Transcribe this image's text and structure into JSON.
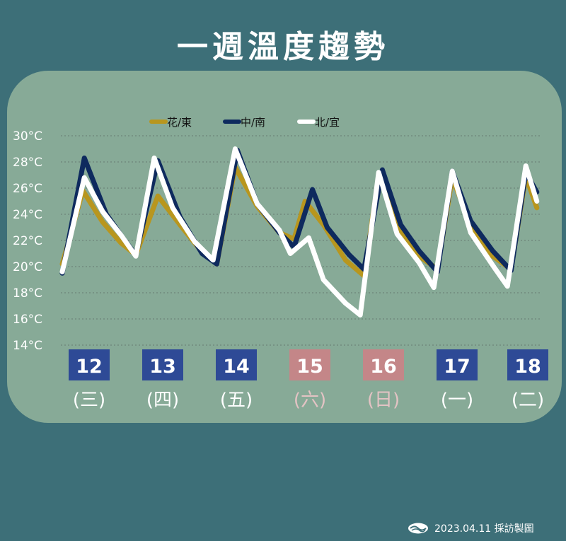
{
  "title": "一週溫度趨勢",
  "footer": {
    "text": "2023.04.11 採訪製圖"
  },
  "colors": {
    "background": "#3d6f78",
    "panel": "#87aa97",
    "weekday": "#2e4a96",
    "weekend": "#c48688"
  },
  "chart_data": {
    "type": "line",
    "title": "一週溫度趨勢",
    "ylabel": "",
    "ylim": [
      14,
      30
    ],
    "yticks": [
      "14°C",
      "16°C",
      "18°C",
      "20°C",
      "22°C",
      "24°C",
      "26°C",
      "28°C",
      "30°C"
    ],
    "grid": true,
    "legend_position": "top",
    "days": [
      {
        "date": "12",
        "weekday": "(三)",
        "weekend": false
      },
      {
        "date": "13",
        "weekday": "(四)",
        "weekend": false
      },
      {
        "date": "14",
        "weekday": "(五)",
        "weekend": false
      },
      {
        "date": "15",
        "weekday": "(六)",
        "weekend": true
      },
      {
        "date": "16",
        "weekday": "(日)",
        "weekend": true
      },
      {
        "date": "17",
        "weekday": "(一)",
        "weekend": false
      },
      {
        "date": "18",
        "weekday": "(二)",
        "weekend": false
      }
    ],
    "series": [
      {
        "name": "花/東",
        "color": "#b8961e",
        "values": [
          [
            0,
            20.2
          ],
          [
            0.28,
            25.8
          ],
          [
            0.55,
            23.4
          ],
          [
            0.8,
            21.8
          ],
          [
            1.0,
            20.9
          ],
          [
            1.3,
            25.4
          ],
          [
            1.6,
            23.2
          ],
          [
            1.9,
            21.1
          ],
          [
            2.1,
            20.2
          ],
          [
            2.35,
            27.6
          ],
          [
            2.65,
            24.6
          ],
          [
            2.95,
            22.6
          ],
          [
            3.15,
            22.1
          ],
          [
            3.3,
            25.0
          ],
          [
            3.55,
            23.2
          ],
          [
            3.85,
            20.5
          ],
          [
            4.1,
            19.3
          ],
          [
            4.3,
            26.9
          ],
          [
            4.6,
            22.6
          ],
          [
            4.85,
            20.8
          ],
          [
            5.1,
            19.8
          ],
          [
            5.3,
            26.8
          ],
          [
            5.55,
            23.2
          ],
          [
            5.85,
            20.8
          ],
          [
            6.1,
            19.8
          ],
          [
            6.3,
            26.9
          ],
          [
            6.45,
            24.5
          ]
        ]
      },
      {
        "name": "中/南",
        "color": "#0e2a5e",
        "values": [
          [
            0,
            19.5
          ],
          [
            0.3,
            28.3
          ],
          [
            0.6,
            24.0
          ],
          [
            0.85,
            22.0
          ],
          [
            1.0,
            20.9
          ],
          [
            1.3,
            28.1
          ],
          [
            1.6,
            23.8
          ],
          [
            1.9,
            21.0
          ],
          [
            2.1,
            20.2
          ],
          [
            2.38,
            28.9
          ],
          [
            2.65,
            24.8
          ],
          [
            2.95,
            22.6
          ],
          [
            3.15,
            21.5
          ],
          [
            3.4,
            25.9
          ],
          [
            3.6,
            23.0
          ],
          [
            3.9,
            20.9
          ],
          [
            4.1,
            19.8
          ],
          [
            4.35,
            27.4
          ],
          [
            4.6,
            23.2
          ],
          [
            4.85,
            21.2
          ],
          [
            5.1,
            19.6
          ],
          [
            5.3,
            27.3
          ],
          [
            5.55,
            23.5
          ],
          [
            5.85,
            21.2
          ],
          [
            6.1,
            19.7
          ],
          [
            6.3,
            27.2
          ],
          [
            6.45,
            25.7
          ]
        ]
      },
      {
        "name": "北/宜",
        "color": "#ffffff",
        "values": [
          [
            0,
            19.6
          ],
          [
            0.3,
            26.8
          ],
          [
            0.55,
            24.2
          ],
          [
            0.8,
            22.4
          ],
          [
            1.0,
            20.8
          ],
          [
            1.25,
            28.3
          ],
          [
            1.5,
            24.5
          ],
          [
            1.8,
            21.9
          ],
          [
            2.05,
            20.5
          ],
          [
            2.35,
            29.0
          ],
          [
            2.65,
            24.8
          ],
          [
            2.95,
            22.8
          ],
          [
            3.1,
            21.0
          ],
          [
            3.35,
            22.2
          ],
          [
            3.55,
            19.0
          ],
          [
            3.85,
            17.2
          ],
          [
            4.05,
            16.3
          ],
          [
            4.3,
            27.2
          ],
          [
            4.55,
            22.5
          ],
          [
            4.85,
            20.3
          ],
          [
            5.05,
            18.4
          ],
          [
            5.3,
            27.3
          ],
          [
            5.55,
            22.6
          ],
          [
            5.85,
            20.1
          ],
          [
            6.05,
            18.5
          ],
          [
            6.3,
            27.7
          ],
          [
            6.45,
            25.0
          ]
        ]
      }
    ]
  }
}
